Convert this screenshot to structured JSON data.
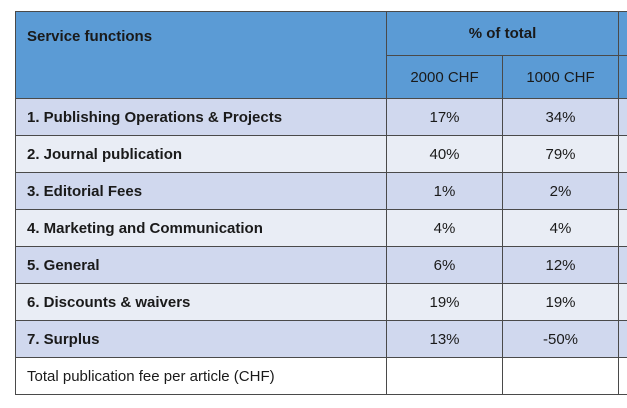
{
  "table": {
    "header": {
      "title": "Service functions",
      "group_label": "% of total",
      "columns": [
        "2000 CHF",
        "1000 CHF"
      ]
    },
    "rows": [
      {
        "label": "1. Publishing Operations & Projects",
        "values": [
          "17%",
          "34%"
        ]
      },
      {
        "label": "2. Journal publication",
        "values": [
          "40%",
          "79%"
        ]
      },
      {
        "label": "3. Editorial Fees",
        "values": [
          "1%",
          "2%"
        ]
      },
      {
        "label": "4. Marketing and Communication",
        "values": [
          "4%",
          "4%"
        ]
      },
      {
        "label": "5. General",
        "values": [
          "6%",
          "12%"
        ]
      },
      {
        "label": "6. Discounts & waivers",
        "values": [
          "19%",
          "19%"
        ]
      },
      {
        "label": "7. Surplus",
        "values": [
          "13%",
          "-50%"
        ]
      }
    ],
    "footer": {
      "label": "Total publication fee per article (CHF)",
      "values": [
        "",
        ""
      ]
    },
    "colors": {
      "header_bg": "#5b9bd5",
      "row_odd_bg": "#d0d8ee",
      "row_even_bg": "#e9edf5",
      "border": "#4a4a4a"
    }
  }
}
